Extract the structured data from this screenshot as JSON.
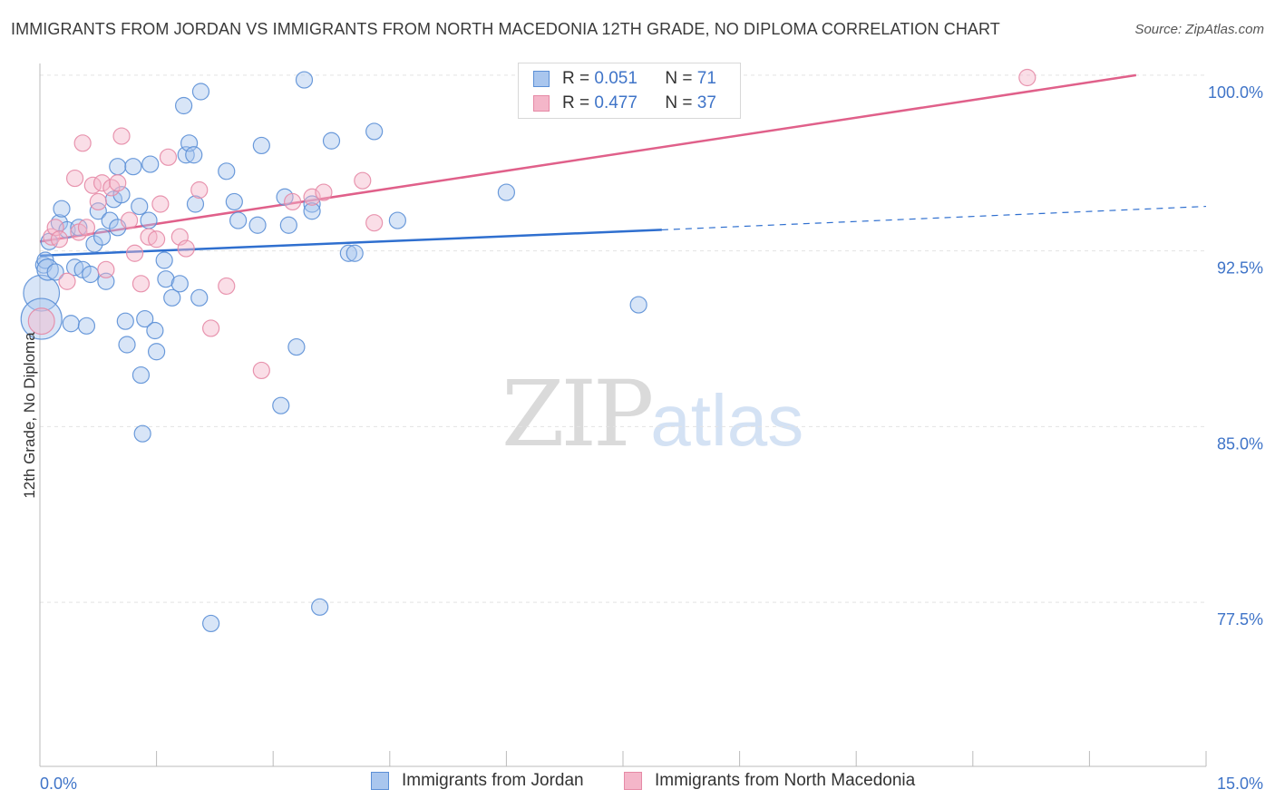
{
  "title": "IMMIGRANTS FROM JORDAN VS IMMIGRANTS FROM NORTH MACEDONIA 12TH GRADE, NO DIPLOMA CORRELATION CHART",
  "source": "Source: ZipAtlas.com",
  "watermark": {
    "zip": "ZIP",
    "atlas": "atlas"
  },
  "legend": {
    "r_label": "R =",
    "n_label": "N =",
    "series": [
      {
        "name": "Immigrants from Jordan",
        "r": "0.051",
        "n": "71"
      },
      {
        "name": "Immigrants from North Macedonia",
        "r": "0.477",
        "n": "37"
      }
    ]
  },
  "colors": {
    "blue_fill": "#a9c6ee",
    "blue_stroke": "#5b8fd6",
    "blue_line": "#2f6fcf",
    "pink_fill": "#f4b6c9",
    "pink_stroke": "#e68aa6",
    "pink_line": "#e0608a",
    "tick_text": "#3f74c8",
    "grid": "#e3e3e3"
  },
  "chart_data": {
    "type": "scatter",
    "title": "IMMIGRANTS FROM JORDAN VS IMMIGRANTS FROM NORTH MACEDONIA 12TH GRADE, NO DIPLOMA CORRELATION CHART",
    "xlabel": "",
    "ylabel": "12th Grade, No Diploma",
    "xlim": [
      0,
      15
    ],
    "ylim": [
      70.5,
      100.5
    ],
    "x_tick_labels": [
      "0.0%",
      "15.0%"
    ],
    "y_ticks": [
      {
        "value": 100.0,
        "label": "100.0%"
      },
      {
        "value": 92.5,
        "label": "92.5%"
      },
      {
        "value": 85.0,
        "label": "85.0%"
      },
      {
        "value": 77.5,
        "label": "77.5%"
      }
    ],
    "series": [
      {
        "name": "Immigrants from Jordan",
        "r": 0.051,
        "n": 71,
        "trend": {
          "x0": 0,
          "y0": 92.3,
          "x1": 8.0,
          "y1": 93.4,
          "dash_to_x": 15.0,
          "dash_to_y": 94.4
        },
        "points": [
          [
            0.02,
            90.7,
            2.2
          ],
          [
            0.02,
            89.6,
            2.5
          ],
          [
            0.05,
            91.9,
            1
          ],
          [
            0.07,
            92.1,
            1
          ],
          [
            0.1,
            91.7,
            1.3
          ],
          [
            0.12,
            92.9,
            1
          ],
          [
            0.2,
            91.6,
            1
          ],
          [
            0.25,
            93.7,
            1
          ],
          [
            0.28,
            94.3,
            1
          ],
          [
            0.35,
            93.4,
            1
          ],
          [
            0.4,
            89.4,
            1
          ],
          [
            0.45,
            91.8,
            1
          ],
          [
            0.5,
            93.5,
            1
          ],
          [
            0.55,
            91.7,
            1
          ],
          [
            0.6,
            89.3,
            1
          ],
          [
            0.65,
            91.5,
            1
          ],
          [
            0.7,
            92.8,
            1
          ],
          [
            0.75,
            94.2,
            1
          ],
          [
            0.8,
            93.1,
            1
          ],
          [
            0.85,
            91.2,
            1
          ],
          [
            0.9,
            93.8,
            1
          ],
          [
            0.95,
            94.7,
            1
          ],
          [
            1.0,
            93.5,
            1
          ],
          [
            1.0,
            96.1,
            1
          ],
          [
            1.05,
            94.9,
            1
          ],
          [
            1.1,
            89.5,
            1
          ],
          [
            1.12,
            88.5,
            1
          ],
          [
            1.2,
            96.1,
            1
          ],
          [
            1.28,
            94.4,
            1
          ],
          [
            1.3,
            87.2,
            1
          ],
          [
            1.32,
            84.7,
            1
          ],
          [
            1.35,
            89.6,
            1
          ],
          [
            1.4,
            93.8,
            1
          ],
          [
            1.42,
            96.2,
            1
          ],
          [
            1.48,
            89.1,
            1
          ],
          [
            1.5,
            88.2,
            1
          ],
          [
            1.6,
            92.1,
            1
          ],
          [
            1.62,
            91.3,
            1
          ],
          [
            1.7,
            90.5,
            1
          ],
          [
            1.8,
            91.1,
            1
          ],
          [
            1.85,
            98.7,
            1
          ],
          [
            1.88,
            96.6,
            1
          ],
          [
            1.92,
            97.1,
            1
          ],
          [
            1.98,
            96.6,
            1
          ],
          [
            2.0,
            94.5,
            1
          ],
          [
            2.05,
            90.5,
            1
          ],
          [
            2.07,
            99.3,
            1
          ],
          [
            2.2,
            76.6,
            1
          ],
          [
            2.4,
            95.9,
            1
          ],
          [
            2.5,
            94.6,
            1
          ],
          [
            2.55,
            93.8,
            1
          ],
          [
            2.8,
            93.6,
            1
          ],
          [
            2.85,
            97.0,
            1
          ],
          [
            3.1,
            85.9,
            1
          ],
          [
            3.15,
            94.8,
            1
          ],
          [
            3.2,
            93.6,
            1
          ],
          [
            3.3,
            88.4,
            1
          ],
          [
            3.4,
            99.8,
            1
          ],
          [
            3.5,
            94.5,
            1
          ],
          [
            3.5,
            94.2,
            1
          ],
          [
            3.6,
            77.3,
            1
          ],
          [
            3.75,
            97.2,
            1
          ],
          [
            3.97,
            92.4,
            1
          ],
          [
            4.05,
            92.4,
            1
          ],
          [
            4.3,
            97.6,
            1
          ],
          [
            4.6,
            93.8,
            1
          ],
          [
            6.0,
            95.0,
            1
          ],
          [
            7.7,
            90.2,
            1
          ]
        ]
      },
      {
        "name": "Immigrants from North Macedonia",
        "r": 0.477,
        "n": 37,
        "trend": {
          "x0": 0,
          "y0": 92.9,
          "x1": 14.1,
          "y1": 100.0
        },
        "points": [
          [
            0.02,
            89.5,
            1.6
          ],
          [
            0.15,
            93.1,
            1
          ],
          [
            0.2,
            93.5,
            1
          ],
          [
            0.25,
            93.0,
            1
          ],
          [
            0.35,
            91.2,
            1
          ],
          [
            0.45,
            95.6,
            1
          ],
          [
            0.5,
            93.3,
            1
          ],
          [
            0.55,
            97.1,
            1
          ],
          [
            0.6,
            93.5,
            1
          ],
          [
            0.68,
            95.3,
            1
          ],
          [
            0.75,
            94.6,
            1
          ],
          [
            0.8,
            95.4,
            1
          ],
          [
            0.85,
            91.7,
            1
          ],
          [
            0.92,
            95.2,
            1
          ],
          [
            1.0,
            95.4,
            1
          ],
          [
            1.05,
            97.4,
            1
          ],
          [
            1.15,
            93.8,
            1
          ],
          [
            1.22,
            92.4,
            1
          ],
          [
            1.3,
            91.1,
            1
          ],
          [
            1.4,
            93.1,
            1
          ],
          [
            1.5,
            93.0,
            1
          ],
          [
            1.55,
            94.5,
            1
          ],
          [
            1.65,
            96.5,
            1
          ],
          [
            1.8,
            93.1,
            1
          ],
          [
            1.88,
            92.6,
            1
          ],
          [
            2.05,
            95.1,
            1
          ],
          [
            2.2,
            89.2,
            1
          ],
          [
            2.4,
            91.0,
            1
          ],
          [
            2.85,
            87.4,
            1
          ],
          [
            3.25,
            94.6,
            1
          ],
          [
            3.5,
            94.8,
            1
          ],
          [
            3.65,
            95.0,
            1
          ],
          [
            4.15,
            95.5,
            1
          ],
          [
            4.3,
            93.7,
            1
          ],
          [
            8.2,
            98.8,
            1
          ],
          [
            12.7,
            99.9,
            1
          ]
        ]
      }
    ]
  }
}
